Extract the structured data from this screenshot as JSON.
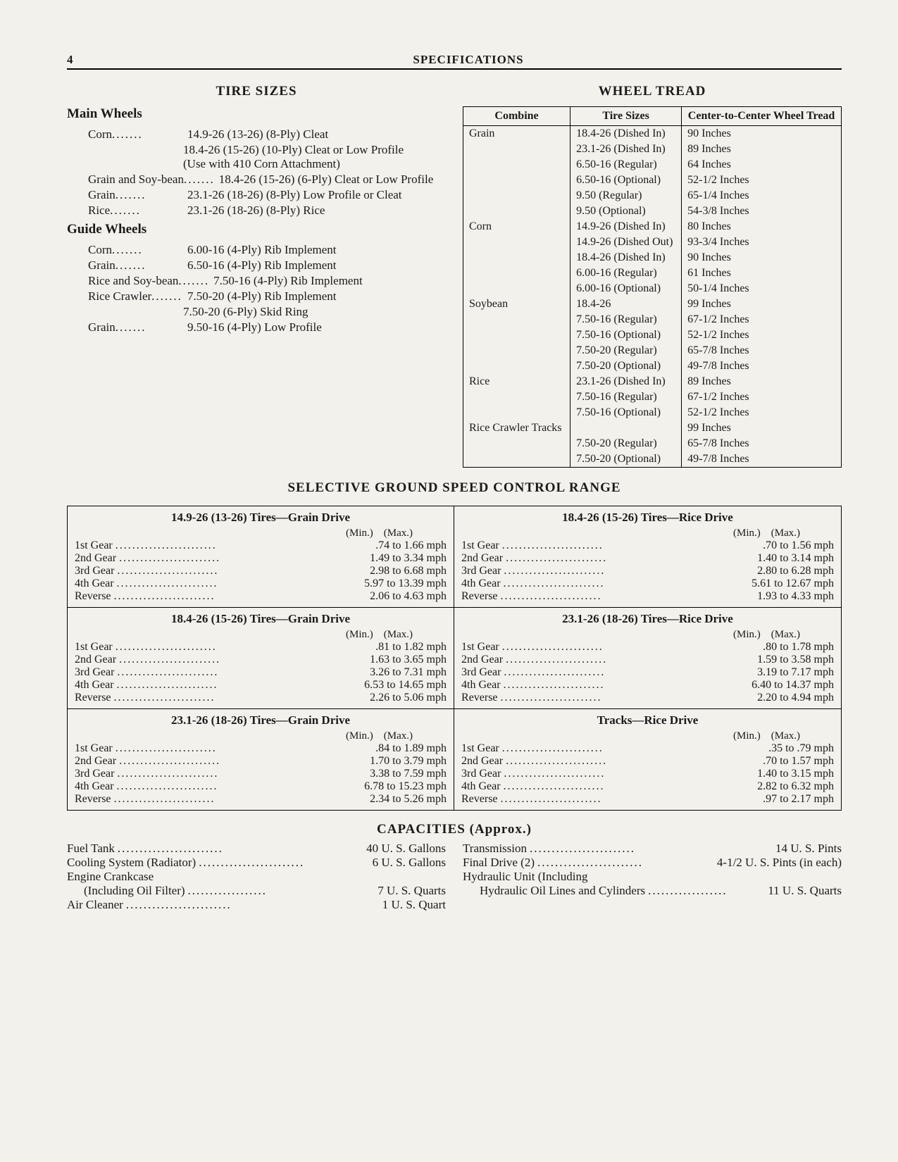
{
  "page": {
    "number": "4",
    "title": "SPECIFICATIONS"
  },
  "tire_sizes": {
    "heading": "TIRE SIZES",
    "main_wheels": {
      "heading": "Main Wheels",
      "items": [
        {
          "label": "Corn",
          "desc": [
            "14.9-26 (13-26) (8-Ply) Cleat",
            "18.4-26 (15-26) (10-Ply) Cleat or Low Profile",
            "(Use with 410 Corn Attachment)"
          ]
        },
        {
          "label": "Grain and Soy-bean",
          "desc": [
            "18.4-26 (15-26) (6-Ply) Cleat or Low Profile"
          ]
        },
        {
          "label": "Grain",
          "desc": [
            "23.1-26 (18-26) (8-Ply) Low Profile or Cleat"
          ]
        },
        {
          "label": "Rice",
          "desc": [
            "23.1-26 (18-26) (8-Ply) Rice"
          ]
        }
      ]
    },
    "guide_wheels": {
      "heading": "Guide Wheels",
      "items": [
        {
          "label": "Corn",
          "desc": [
            "6.00-16 (4-Ply) Rib Implement"
          ]
        },
        {
          "label": "Grain",
          "desc": [
            "6.50-16 (4-Ply) Rib Implement"
          ]
        },
        {
          "label": "Rice and Soy-bean",
          "desc": [
            "7.50-16 (4-Ply) Rib Implement"
          ]
        },
        {
          "label": "Rice Crawler",
          "desc": [
            "7.50-20 (4-Ply) Rib Implement",
            "7.50-20 (6-Ply) Skid Ring"
          ]
        },
        {
          "label": "Grain",
          "desc": [
            "9.50-16 (4-Ply) Low Profile"
          ]
        }
      ]
    }
  },
  "wheel_tread": {
    "heading": "WHEEL TREAD",
    "columns": [
      "Combine",
      "Tire Sizes",
      "Center-to-Center Wheel Tread"
    ],
    "groups": [
      {
        "combine": "Grain",
        "rows": [
          [
            "18.4-26 (Dished In)",
            "90 Inches"
          ],
          [
            "23.1-26 (Dished In)",
            "89 Inches"
          ],
          [
            "6.50-16 (Regular)",
            "64 Inches"
          ],
          [
            "6.50-16 (Optional)",
            "52-1/2 Inches"
          ],
          [
            "9.50 (Regular)",
            "65-1/4 Inches"
          ],
          [
            "9.50 (Optional)",
            "54-3/8 Inches"
          ]
        ]
      },
      {
        "combine": "Corn",
        "rows": [
          [
            "14.9-26 (Dished In)",
            "80 Inches"
          ],
          [
            "14.9-26 (Dished Out)",
            "93-3/4 Inches"
          ],
          [
            "18.4-26 (Dished In)",
            "90 Inches"
          ],
          [
            "6.00-16 (Regular)",
            "61 Inches"
          ],
          [
            "6.00-16 (Optional)",
            "50-1/4 Inches"
          ]
        ]
      },
      {
        "combine": "Soybean",
        "rows": [
          [
            "18.4-26",
            "99 Inches"
          ],
          [
            "7.50-16 (Regular)",
            "67-1/2 Inches"
          ],
          [
            "7.50-16 (Optional)",
            "52-1/2 Inches"
          ],
          [
            "7.50-20 (Regular)",
            "65-7/8 Inches"
          ],
          [
            "7.50-20 (Optional)",
            "49-7/8 Inches"
          ]
        ]
      },
      {
        "combine": "Rice",
        "rows": [
          [
            "23.1-26 (Dished In)",
            "89 Inches"
          ],
          [
            "7.50-16 (Regular)",
            "67-1/2 Inches"
          ],
          [
            "7.50-16 (Optional)",
            "52-1/2 Inches"
          ]
        ]
      },
      {
        "combine": "Rice Crawler Tracks",
        "rows": [
          [
            "",
            "99 Inches"
          ],
          [
            "7.50-20 (Regular)",
            "65-7/8 Inches"
          ],
          [
            "7.50-20 (Optional)",
            "49-7/8 Inches"
          ]
        ]
      }
    ]
  },
  "speed": {
    "heading": "SELECTIVE GROUND SPEED CONTROL RANGE",
    "minmax": "(Min.) (Max.)",
    "blocks": [
      {
        "title": "14.9-26 (13-26) Tires—Grain Drive",
        "gears": [
          [
            "1st Gear",
            ".74 to  1.66 mph"
          ],
          [
            "2nd Gear",
            "1.49 to  3.34 mph"
          ],
          [
            "3rd Gear",
            "2.98 to  6.68 mph"
          ],
          [
            "4th Gear",
            "5.97 to 13.39 mph"
          ],
          [
            "Reverse",
            "2.06 to  4.63 mph"
          ]
        ]
      },
      {
        "title": "18.4-26 (15-26) Tires—Rice Drive",
        "gears": [
          [
            "1st Gear",
            ".70 to  1.56 mph"
          ],
          [
            "2nd Gear",
            "1.40 to  3.14 mph"
          ],
          [
            "3rd Gear",
            "2.80 to  6.28 mph"
          ],
          [
            "4th Gear",
            "5.61 to 12.67 mph"
          ],
          [
            "Reverse",
            "1.93 to  4.33 mph"
          ]
        ]
      },
      {
        "title": "18.4-26 (15-26) Tires—Grain Drive",
        "gears": [
          [
            "1st Gear",
            ".81 to  1.82 mph"
          ],
          [
            "2nd Gear",
            "1.63 to  3.65 mph"
          ],
          [
            "3rd Gear",
            "3.26 to  7.31 mph"
          ],
          [
            "4th Gear",
            "6.53 to 14.65 mph"
          ],
          [
            "Reverse",
            "2.26 to  5.06 mph"
          ]
        ]
      },
      {
        "title": "23.1-26 (18-26) Tires—Rice Drive",
        "gears": [
          [
            "1st Gear",
            ".80 to  1.78 mph"
          ],
          [
            "2nd Gear",
            "1.59 to  3.58 mph"
          ],
          [
            "3rd Gear",
            "3.19 to  7.17 mph"
          ],
          [
            "4th Gear",
            "6.40 to 14.37 mph"
          ],
          [
            "Reverse",
            "2.20 to  4.94 mph"
          ]
        ]
      },
      {
        "title": "23.1-26 (18-26) Tires—Grain Drive",
        "gears": [
          [
            "1st Gear",
            ".84 to  1.89 mph"
          ],
          [
            "2nd Gear",
            "1.70 to  3.79 mph"
          ],
          [
            "3rd Gear",
            "3.38 to  7.59 mph"
          ],
          [
            "4th Gear",
            "6.78 to 15.23 mph"
          ],
          [
            "Reverse",
            "2.34 to  5.26 mph"
          ]
        ]
      },
      {
        "title": "Tracks—Rice Drive",
        "gears": [
          [
            "1st Gear",
            ".35 to   .79 mph"
          ],
          [
            "2nd Gear",
            ".70 to  1.57 mph"
          ],
          [
            "3rd Gear",
            "1.40 to  3.15 mph"
          ],
          [
            "4th Gear",
            "2.82 to  6.32 mph"
          ],
          [
            "Reverse",
            ".97 to  2.17 mph"
          ]
        ]
      }
    ]
  },
  "capacities": {
    "heading": "CAPACITIES (Approx.)",
    "left": [
      {
        "label": "Fuel Tank",
        "value": "40 U. S. Gallons"
      },
      {
        "label": "Cooling System (Radiator)",
        "value": "6 U. S. Gallons"
      },
      {
        "label": "Engine Crankcase (Including Oil Filter)",
        "value": "7 U. S. Quarts",
        "wrap": true
      },
      {
        "label": "Air Cleaner",
        "value": "1 U. S. Quart"
      }
    ],
    "right": [
      {
        "label": "Transmission",
        "value": "14 U. S. Pints"
      },
      {
        "label": "Final Drive (2)",
        "value": "4-1/2 U. S. Pints (in each)"
      },
      {
        "label": "Hydraulic Unit (Including Hydraulic Oil Lines and Cylinders",
        "value": "11 U. S. Quarts",
        "wrap": true
      }
    ]
  }
}
